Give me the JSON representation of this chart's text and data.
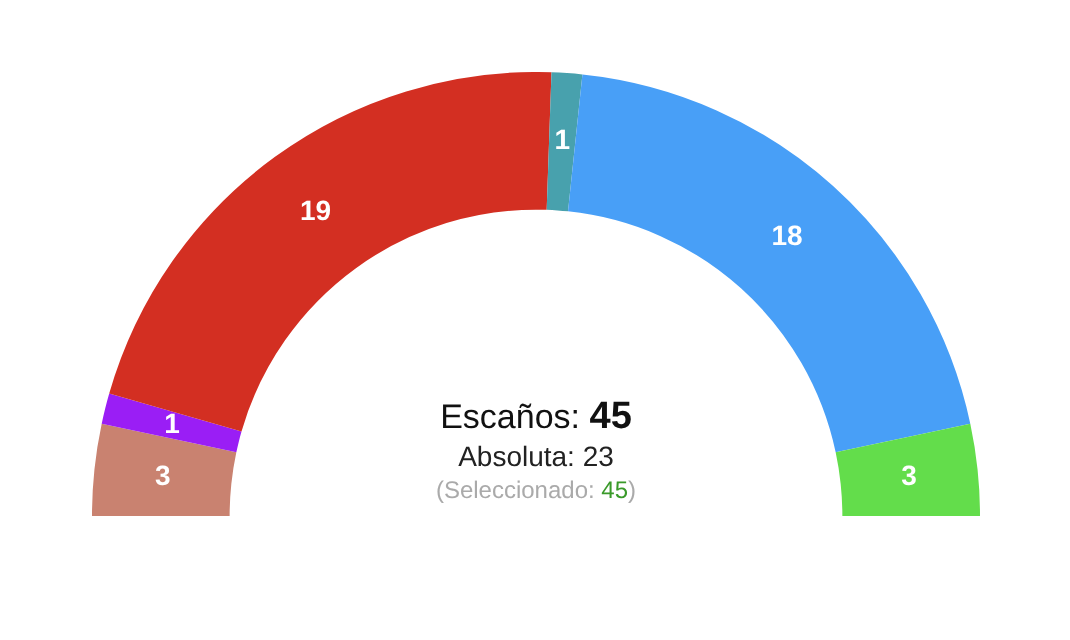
{
  "chart_data": {
    "type": "donut",
    "categories": [
      null,
      null,
      null,
      null,
      null,
      null
    ],
    "values": [
      3,
      1,
      19,
      1,
      18,
      3
    ],
    "colors": [
      "#c98270",
      "#9a1ef5",
      "#d32f22",
      "#48a1ad",
      "#489ff7",
      "#63dd4b"
    ],
    "data_labels": true,
    "annotations": [
      "Escaños: 45",
      "Absoluta: 23",
      "(Seleccionado: 45)"
    ]
  }
}
